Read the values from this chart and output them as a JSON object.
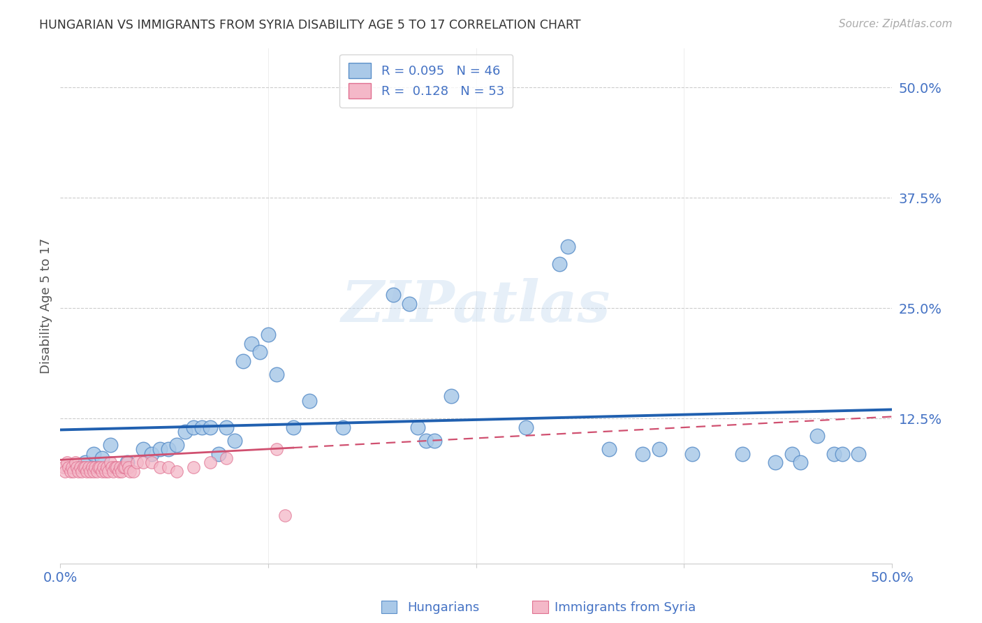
{
  "title": "HUNGARIAN VS IMMIGRANTS FROM SYRIA DISABILITY AGE 5 TO 17 CORRELATION CHART",
  "source": "Source: ZipAtlas.com",
  "ylabel": "Disability Age 5 to 17",
  "ytick_labels": [
    "50.0%",
    "37.5%",
    "25.0%",
    "12.5%"
  ],
  "ytick_values": [
    0.5,
    0.375,
    0.25,
    0.125
  ],
  "xlim": [
    0.0,
    0.5
  ],
  "ylim": [
    -0.04,
    0.545
  ],
  "blue_color": "#aac9e8",
  "blue_edge_color": "#5b8fc9",
  "blue_line_color": "#2060b0",
  "pink_color": "#f4b8c8",
  "pink_edge_color": "#e07090",
  "pink_line_color": "#d05070",
  "watermark": "ZIPatlas",
  "blue_line_x0": 0.0,
  "blue_line_y0": 0.112,
  "blue_line_x1": 0.5,
  "blue_line_y1": 0.135,
  "pink_line_x0": 0.0,
  "pink_line_y0": 0.078,
  "pink_line_x1": 0.5,
  "pink_line_y1": 0.127,
  "blue_scatter_x": [
    0.015,
    0.02,
    0.025,
    0.03,
    0.04,
    0.05,
    0.055,
    0.06,
    0.065,
    0.07,
    0.075,
    0.08,
    0.085,
    0.09,
    0.095,
    0.1,
    0.105,
    0.11,
    0.115,
    0.12,
    0.125,
    0.13,
    0.14,
    0.15,
    0.17,
    0.2,
    0.21,
    0.215,
    0.22,
    0.225,
    0.235,
    0.28,
    0.3,
    0.305,
    0.33,
    0.35,
    0.36,
    0.38,
    0.41,
    0.43,
    0.44,
    0.445,
    0.455,
    0.465,
    0.47,
    0.48
  ],
  "blue_scatter_y": [
    0.075,
    0.085,
    0.08,
    0.095,
    0.075,
    0.09,
    0.085,
    0.09,
    0.09,
    0.095,
    0.11,
    0.115,
    0.115,
    0.115,
    0.085,
    0.115,
    0.1,
    0.19,
    0.21,
    0.2,
    0.22,
    0.175,
    0.115,
    0.145,
    0.115,
    0.265,
    0.255,
    0.115,
    0.1,
    0.1,
    0.15,
    0.115,
    0.3,
    0.32,
    0.09,
    0.085,
    0.09,
    0.085,
    0.085,
    0.075,
    0.085,
    0.075,
    0.105,
    0.085,
    0.085,
    0.085
  ],
  "pink_scatter_x": [
    0.002,
    0.003,
    0.004,
    0.005,
    0.006,
    0.007,
    0.008,
    0.009,
    0.01,
    0.011,
    0.012,
    0.013,
    0.014,
    0.015,
    0.016,
    0.017,
    0.018,
    0.019,
    0.02,
    0.021,
    0.022,
    0.023,
    0.024,
    0.025,
    0.026,
    0.027,
    0.028,
    0.029,
    0.03,
    0.031,
    0.032,
    0.033,
    0.034,
    0.035,
    0.036,
    0.037,
    0.038,
    0.039,
    0.04,
    0.041,
    0.042,
    0.044,
    0.046,
    0.05,
    0.055,
    0.06,
    0.065,
    0.07,
    0.08,
    0.09,
    0.1,
    0.13,
    0.135
  ],
  "pink_scatter_y": [
    0.07,
    0.065,
    0.075,
    0.07,
    0.065,
    0.07,
    0.065,
    0.075,
    0.07,
    0.065,
    0.07,
    0.065,
    0.07,
    0.07,
    0.065,
    0.07,
    0.065,
    0.07,
    0.065,
    0.07,
    0.065,
    0.07,
    0.07,
    0.065,
    0.07,
    0.065,
    0.07,
    0.065,
    0.075,
    0.07,
    0.065,
    0.07,
    0.07,
    0.065,
    0.07,
    0.065,
    0.07,
    0.07,
    0.075,
    0.07,
    0.065,
    0.065,
    0.075,
    0.075,
    0.075,
    0.07,
    0.07,
    0.065,
    0.07,
    0.075,
    0.08,
    0.09,
    0.015
  ],
  "bg_color": "#ffffff",
  "title_color": "#333333",
  "axis_color": "#4472c4",
  "grid_color": "#cccccc"
}
